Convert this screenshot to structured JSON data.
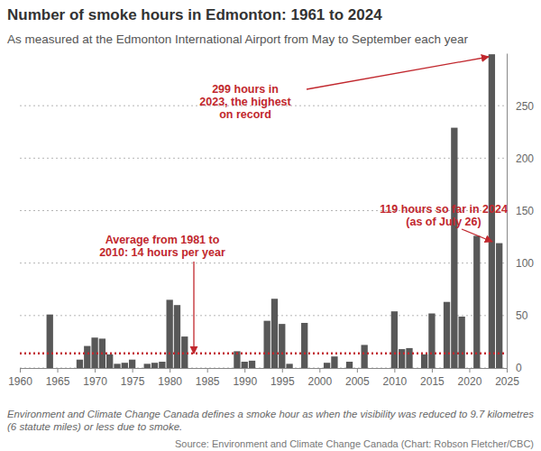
{
  "chart_data": {
    "type": "bar",
    "title": "Number of smoke hours in Edmonton: 1961 to 2024",
    "subtitle": "As measured at the Edmonton International Airport from May to September each year",
    "x": [
      1964,
      1968,
      1969,
      1970,
      1971,
      1972,
      1973,
      1974,
      1975,
      1977,
      1978,
      1979,
      1980,
      1981,
      1982,
      1989,
      1990,
      1991,
      1993,
      1994,
      1995,
      1996,
      1998,
      2001,
      2002,
      2004,
      2006,
      2010,
      2011,
      2012,
      2014,
      2015,
      2017,
      2018,
      2019,
      2021,
      2023,
      2024
    ],
    "values": [
      51,
      8,
      21,
      29,
      28,
      13,
      4,
      5,
      8,
      4,
      5,
      6,
      65,
      60,
      30,
      16,
      6,
      7,
      45,
      66,
      42,
      4,
      43,
      5,
      11,
      6,
      22,
      54,
      18,
      19,
      13,
      52,
      63,
      229,
      49,
      126,
      299,
      119
    ],
    "color": "#585858",
    "xlim": [
      1960,
      2025
    ],
    "xticks": [
      1960,
      1965,
      1970,
      1975,
      1980,
      1985,
      1990,
      1995,
      2000,
      2005,
      2010,
      2015,
      2020,
      2025
    ],
    "ylim": [
      0,
      300
    ],
    "yticks": [
      0,
      50,
      100,
      150,
      200,
      250
    ],
    "grid": true,
    "average": 14,
    "annotations": [
      {
        "text": [
          "299 hours in",
          "2023, the highest",
          "on record"
        ]
      },
      {
        "text": [
          "119 hours so far in 2024",
          "(as of July 26)"
        ]
      },
      {
        "text": [
          "Average from 1981 to",
          "2010: 14 hours per year"
        ]
      }
    ],
    "note": [
      "Environment and Climate Change Canada defines a smoke hour as when the visibility was reduced to 9.7 kilometres",
      "(6 statute miles) or less due to smoke."
    ],
    "source": "Source: Environment and Climate Change Canada (Chart: Robson Fletcher/CBC)"
  }
}
